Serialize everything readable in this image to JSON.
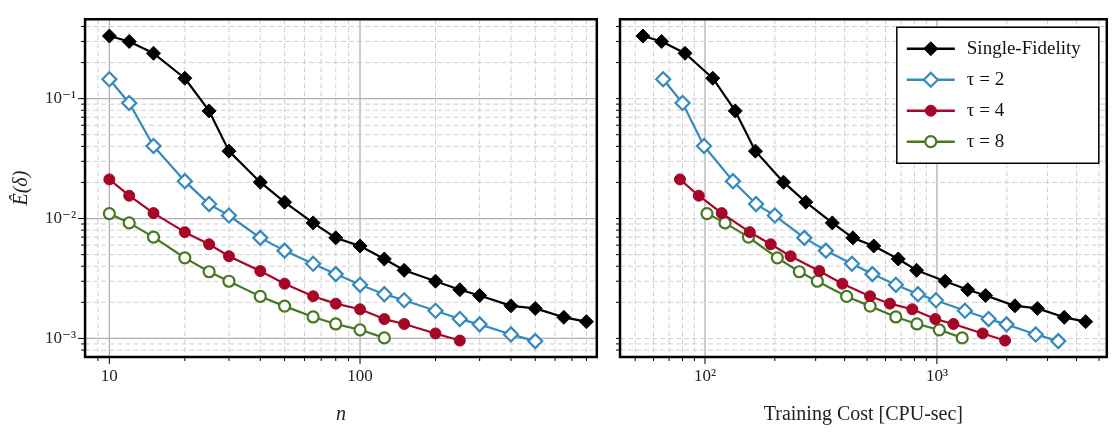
{
  "chart_data": [
    {
      "type": "line",
      "xlabel": "n",
      "ylabel": "Ê(δ)",
      "log": "xy",
      "grid": true,
      "legend": false,
      "xlim": [
        8,
        880
      ],
      "ylim": [
        0.0007,
        0.46
      ],
      "xticks": [
        {
          "value": 9,
          "label": null
        },
        10,
        {
          "value": 20,
          "label": null
        },
        {
          "value": 30,
          "label": null
        },
        {
          "value": 40,
          "label": null
        },
        {
          "value": 50,
          "label": null
        },
        {
          "value": 60,
          "label": null
        },
        {
          "value": 70,
          "label": null
        },
        {
          "value": 80,
          "label": null
        },
        {
          "value": 90,
          "label": null
        },
        100,
        {
          "value": 200,
          "label": null
        },
        {
          "value": 300,
          "label": null
        },
        {
          "value": 400,
          "label": null
        },
        {
          "value": 500,
          "label": null
        },
        {
          "value": 600,
          "label": null
        },
        {
          "value": 700,
          "label": null
        },
        {
          "value": 800,
          "label": null
        }
      ],
      "yticks": [
        {
          "value": 0.0008,
          "label": null
        },
        {
          "value": 0.0009,
          "label": null
        },
        {
          "value": 0.001,
          "label": "10⁻³"
        },
        {
          "value": 0.002,
          "label": null
        },
        {
          "value": 0.003,
          "label": null
        },
        {
          "value": 0.004,
          "label": null
        },
        {
          "value": 0.005,
          "label": null
        },
        {
          "value": 0.006,
          "label": null
        },
        {
          "value": 0.007,
          "label": null
        },
        {
          "value": 0.008,
          "label": null
        },
        {
          "value": 0.009,
          "label": null
        },
        {
          "value": 0.01,
          "label": "10⁻²"
        },
        {
          "value": 0.02,
          "label": null
        },
        {
          "value": 0.03,
          "label": null
        },
        {
          "value": 0.04,
          "label": null
        },
        {
          "value": 0.05,
          "label": null
        },
        {
          "value": 0.06,
          "label": null
        },
        {
          "value": 0.07,
          "label": null
        },
        {
          "value": 0.08,
          "label": null
        },
        {
          "value": 0.09,
          "label": null
        },
        {
          "value": 0.1,
          "label": "10⁻¹"
        },
        {
          "value": 0.2,
          "label": null
        },
        {
          "value": 0.3,
          "label": null
        },
        {
          "value": 0.4,
          "label": null
        }
      ],
      "series": [
        {
          "color": "#000000",
          "marker": "diamond",
          "x": [
            10,
            12,
            15,
            20,
            25,
            30,
            40,
            50,
            65,
            80,
            100,
            125,
            150,
            200,
            250,
            300,
            400,
            500,
            650,
            800
          ],
          "values": [
            0.333,
            0.3,
            0.239,
            0.148,
            0.079,
            0.0365,
            0.0201,
            0.0137,
            0.0092,
            0.0069,
            0.0059,
            0.0046,
            0.0037,
            0.003,
            0.00255,
            0.00228,
            0.00187,
            0.00178,
            0.0015,
            0.00138
          ]
        },
        {
          "color": "#348abd",
          "marker": "diamond",
          "x": [
            10,
            12,
            15,
            20,
            25,
            30,
            40,
            50,
            65,
            80,
            100,
            125,
            150,
            200,
            250,
            300,
            400,
            500
          ],
          "values": [
            0.145,
            0.092,
            0.0403,
            0.0205,
            0.0132,
            0.0106,
            0.0069,
            0.0054,
            0.0042,
            0.00344,
            0.0028,
            0.00234,
            0.00208,
            0.0017,
            0.00145,
            0.00131,
            0.00108,
            0.00095
          ]
        },
        {
          "color": "#a60628",
          "marker": "circle",
          "x": [
            10,
            12,
            15,
            20,
            25,
            30,
            40,
            50,
            65,
            80,
            100,
            125,
            150,
            200,
            250
          ],
          "values": [
            0.0212,
            0.0155,
            0.0111,
            0.0077,
            0.0061,
            0.00485,
            0.00365,
            0.00286,
            0.00225,
            0.00195,
            0.00175,
            0.00145,
            0.00132,
            0.0011,
            0.00096
          ]
        },
        {
          "color": "#467821",
          "marker": "circle",
          "x": [
            10,
            12,
            15,
            20,
            25,
            30,
            40,
            50,
            65,
            80,
            100,
            125
          ],
          "values": [
            0.011,
            0.0092,
            0.007,
            0.0047,
            0.0036,
            0.003,
            0.00224,
            0.00186,
            0.00151,
            0.00132,
            0.00118,
            0.00101
          ]
        }
      ]
    },
    {
      "type": "line",
      "xlabel": "Training Cost [CPU-sec]",
      "log": "xy",
      "grid": true,
      "legend": "top right",
      "tick_labels": "x",
      "xlim": [
        43,
        5400
      ],
      "ylim": [
        0.0007,
        0.46
      ],
      "xticks": [
        {
          "value": 50,
          "label": null
        },
        {
          "value": 60,
          "label": null
        },
        {
          "value": 70,
          "label": null
        },
        {
          "value": 80,
          "label": null
        },
        {
          "value": 90,
          "label": null
        },
        {
          "value": 100,
          "label": "10²"
        },
        {
          "value": 200,
          "label": null
        },
        {
          "value": 300,
          "label": null
        },
        {
          "value": 400,
          "label": null
        },
        {
          "value": 500,
          "label": null
        },
        {
          "value": 600,
          "label": null
        },
        {
          "value": 700,
          "label": null
        },
        {
          "value": 800,
          "label": null
        },
        {
          "value": 900,
          "label": null
        },
        {
          "value": 1000,
          "label": "10³"
        },
        {
          "value": 2000,
          "label": null
        },
        {
          "value": 3000,
          "label": null
        },
        {
          "value": 4000,
          "label": null
        },
        {
          "value": 5000,
          "label": null
        }
      ],
      "yticks": [
        {
          "value": 0.0008,
          "label": null
        },
        {
          "value": 0.0009,
          "label": null
        },
        {
          "value": 0.001,
          "label": null
        },
        {
          "value": 0.002,
          "label": null
        },
        {
          "value": 0.003,
          "label": null
        },
        {
          "value": 0.004,
          "label": null
        },
        {
          "value": 0.005,
          "label": null
        },
        {
          "value": 0.006,
          "label": null
        },
        {
          "value": 0.007,
          "label": null
        },
        {
          "value": 0.008,
          "label": null
        },
        {
          "value": 0.009,
          "label": null
        },
        {
          "value": 0.01,
          "label": null
        },
        {
          "value": 0.02,
          "label": null
        },
        {
          "value": 0.03,
          "label": null
        },
        {
          "value": 0.04,
          "label": null
        },
        {
          "value": 0.05,
          "label": null
        },
        {
          "value": 0.06,
          "label": null
        },
        {
          "value": 0.07,
          "label": null
        },
        {
          "value": 0.08,
          "label": null
        },
        {
          "value": 0.09,
          "label": null
        },
        {
          "value": 0.1,
          "label": null
        },
        {
          "value": 0.2,
          "label": null
        },
        {
          "value": 0.3,
          "label": null
        },
        {
          "value": 0.4,
          "label": null
        }
      ],
      "series": [
        {
          "name": "Single-Fidelity",
          "color": "#000000",
          "marker": "diamond",
          "x": [
            54,
            65,
            82,
            108,
            135,
            165,
            218,
            272,
            354,
            434,
            534,
            681,
            817,
            1084,
            1358,
            1622,
            2168,
            2709,
            3540,
            4375
          ],
          "values": [
            0.333,
            0.3,
            0.239,
            0.148,
            0.079,
            0.0365,
            0.0201,
            0.0137,
            0.0092,
            0.0069,
            0.0059,
            0.0046,
            0.0037,
            0.003,
            0.00255,
            0.00228,
            0.00187,
            0.00178,
            0.0015,
            0.00138
          ]
        },
        {
          "name": "τ = 2",
          "color": "#348abd",
          "marker": "diamond",
          "x": [
            66,
            80,
            99,
            132,
            166,
            200,
            268,
            332,
            430,
            527,
            665,
            828,
            990,
            1320,
            1670,
            1995,
            2666,
            3335
          ],
          "values": [
            0.145,
            0.092,
            0.0403,
            0.0205,
            0.0132,
            0.0106,
            0.0069,
            0.0054,
            0.0042,
            0.00344,
            0.0028,
            0.00234,
            0.00208,
            0.0017,
            0.00145,
            0.00131,
            0.00108,
            0.00095
          ]
        },
        {
          "name": "τ = 4",
          "color": "#a60628",
          "marker": "circle",
          "x": [
            78,
            94,
            118,
            156,
            192,
            234,
            311,
            391,
            515,
            627,
            783,
            984,
            1178,
            1574,
            1967
          ],
          "values": [
            0.0212,
            0.0155,
            0.0111,
            0.0077,
            0.0061,
            0.00485,
            0.00365,
            0.00286,
            0.00225,
            0.00195,
            0.00175,
            0.00145,
            0.00132,
            0.0011,
            0.00096
          ]
        },
        {
          "name": "τ = 8",
          "color": "#467821",
          "marker": "circle",
          "x": [
            102,
            122,
            154,
            205,
            255,
            305,
            408,
            515,
            665,
            820,
            1024,
            1285
          ],
          "values": [
            0.011,
            0.0092,
            0.007,
            0.0047,
            0.0036,
            0.003,
            0.00224,
            0.00186,
            0.00151,
            0.00132,
            0.00118,
            0.00101
          ]
        }
      ]
    }
  ]
}
